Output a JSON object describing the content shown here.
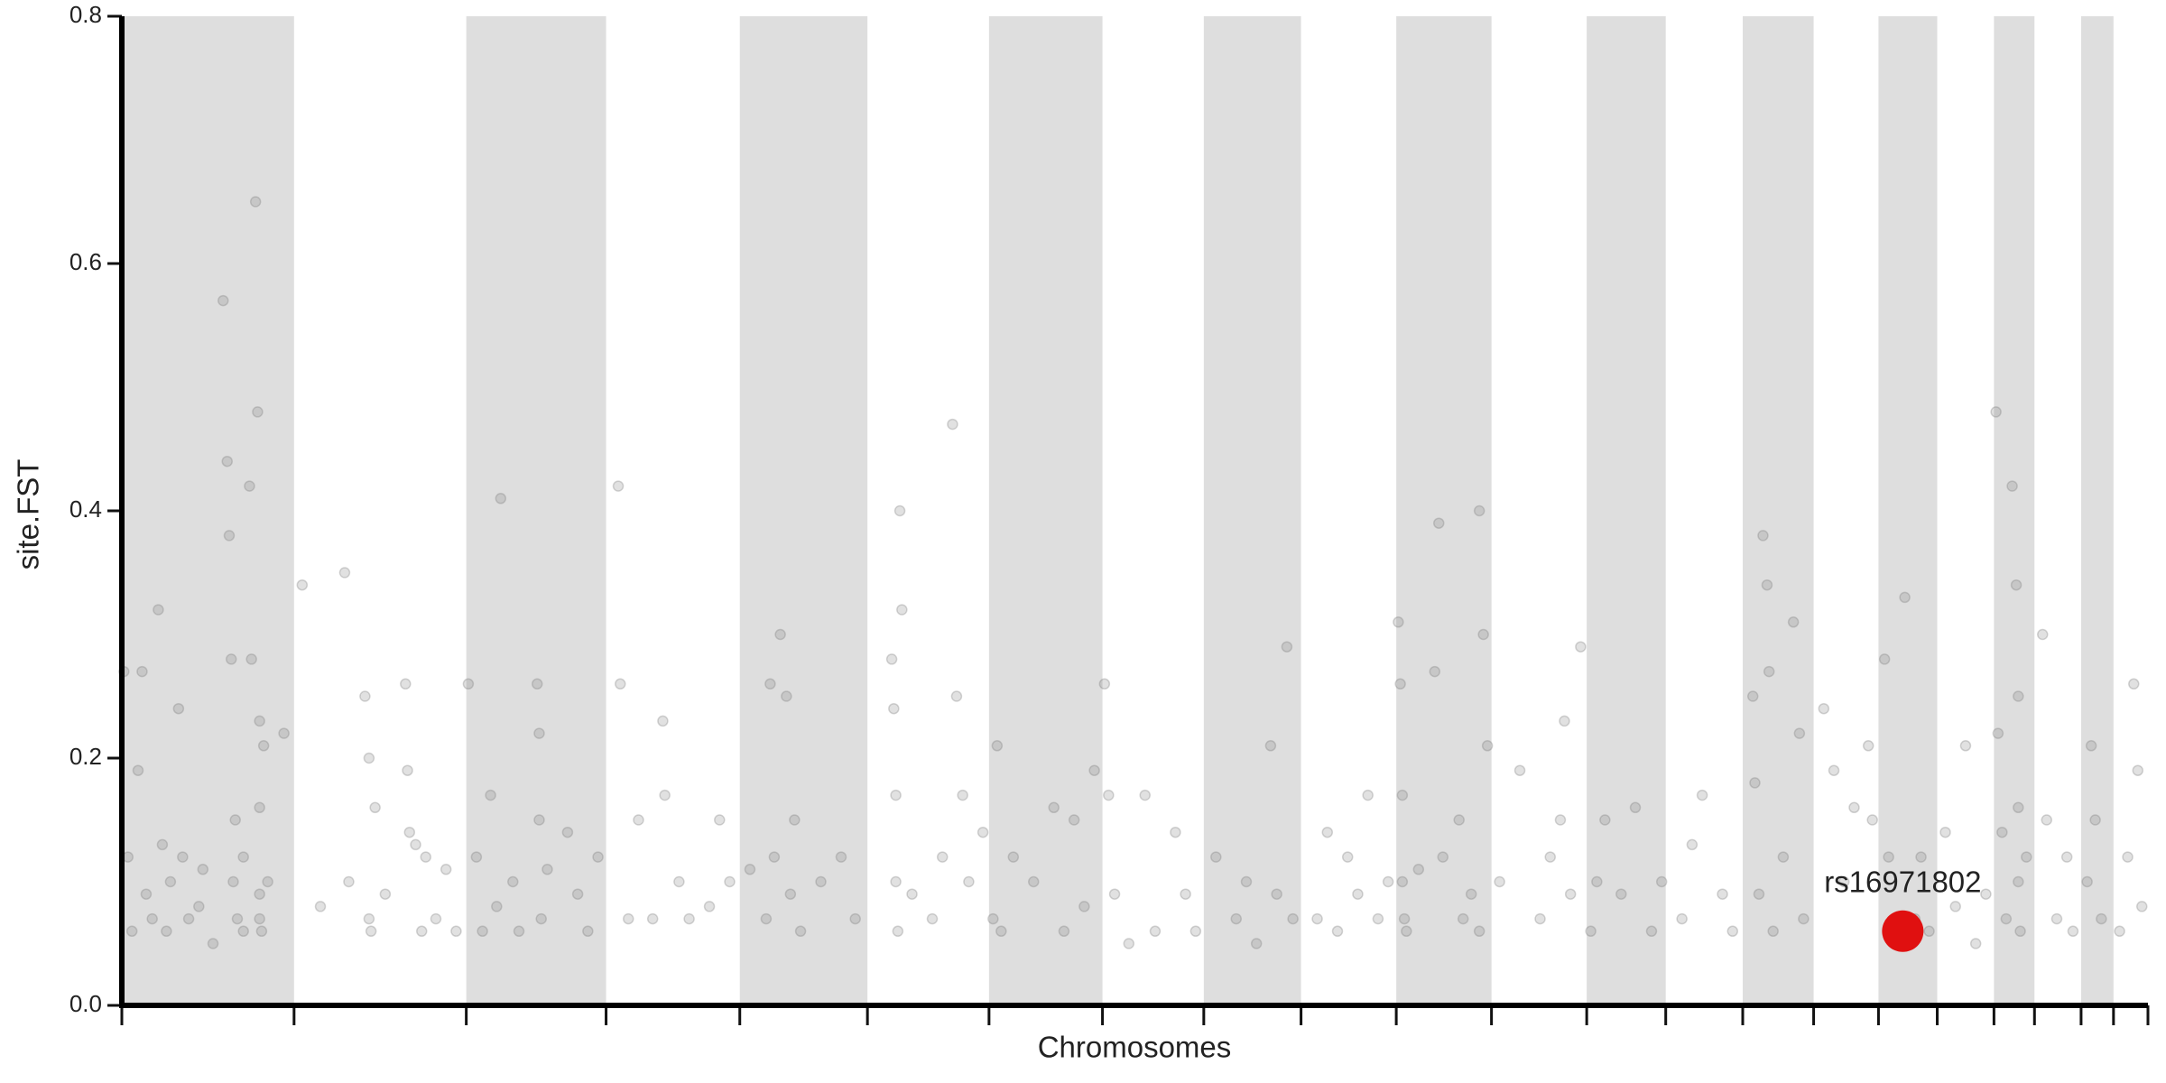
{
  "chart_data": {
    "type": "scatter",
    "x_label": "Chromosomes",
    "y_label": "site.FST",
    "xlim": [
      0,
      1000
    ],
    "xticks": [
      0,
      85,
      170,
      239,
      305,
      368,
      428,
      484,
      534,
      582,
      629,
      676,
      723,
      762,
      800,
      835,
      867,
      896,
      924,
      944,
      967,
      983,
      1000
    ],
    "ylim": [
      0,
      0.8
    ],
    "yticks": [
      {
        "value": 0,
        "label": "0.0"
      },
      0.2,
      0.4,
      0.6,
      0.8
    ],
    "color": "#777777",
    "band_color": "#dedede",
    "x": [
      1,
      3,
      5,
      8,
      10,
      12,
      15,
      18,
      20,
      22,
      24,
      28,
      30,
      33,
      38,
      40,
      50,
      52,
      53,
      54,
      55,
      56,
      57,
      60,
      63,
      64,
      66,
      67,
      68,
      68,
      68,
      68,
      69,
      70,
      72,
      80,
      45,
      60,
      89,
      98,
      110,
      112,
      120,
      122,
      122,
      123,
      125,
      130,
      140,
      141,
      142,
      145,
      148,
      150,
      155,
      160,
      165,
      171,
      175,
      178,
      182,
      185,
      187,
      193,
      196,
      205,
      206,
      206,
      207,
      210,
      220,
      225,
      230,
      235,
      245,
      246,
      250,
      255,
      262,
      267,
      268,
      275,
      280,
      290,
      295,
      300,
      310,
      318,
      320,
      322,
      325,
      328,
      330,
      332,
      335,
      345,
      355,
      362,
      380,
      381,
      382,
      382,
      383,
      384,
      385,
      390,
      400,
      405,
      410,
      412,
      415,
      418,
      425,
      430,
      432,
      434,
      440,
      450,
      460,
      465,
      470,
      475,
      480,
      485,
      487,
      490,
      497,
      505,
      510,
      520,
      525,
      530,
      540,
      550,
      555,
      560,
      567,
      570,
      575,
      578,
      590,
      595,
      600,
      605,
      610,
      615,
      620,
      625,
      630,
      631,
      632,
      632,
      633,
      634,
      640,
      648,
      650,
      652,
      660,
      662,
      666,
      670,
      672,
      674,
      670,
      680,
      690,
      700,
      705,
      710,
      712,
      715,
      720,
      725,
      728,
      732,
      740,
      747,
      755,
      760,
      770,
      775,
      780,
      790,
      795,
      805,
      806,
      808,
      810,
      812,
      813,
      815,
      820,
      825,
      828,
      830,
      840,
      845,
      850,
      855,
      862,
      864,
      870,
      872,
      880,
      885,
      888,
      892,
      900,
      905,
      910,
      915,
      920,
      925,
      926,
      928,
      930,
      933,
      935,
      936,
      936,
      936,
      937,
      940,
      948,
      950,
      955,
      960,
      963,
      970,
      972,
      974,
      977,
      986,
      990,
      993,
      995,
      997
    ],
    "values": [
      0.27,
      0.12,
      0.06,
      0.19,
      0.27,
      0.09,
      0.07,
      0.32,
      0.13,
      0.06,
      0.1,
      0.24,
      0.12,
      0.07,
      0.08,
      0.11,
      0.57,
      0.44,
      0.38,
      0.28,
      0.1,
      0.15,
      0.07,
      0.12,
      0.42,
      0.28,
      0.65,
      0.48,
      0.23,
      0.16,
      0.09,
      0.07,
      0.06,
      0.21,
      0.1,
      0.22,
      0.05,
      0.06,
      0.34,
      0.08,
      0.35,
      0.1,
      0.25,
      0.2,
      0.07,
      0.06,
      0.16,
      0.09,
      0.26,
      0.19,
      0.14,
      0.13,
      0.06,
      0.12,
      0.07,
      0.11,
      0.06,
      0.26,
      0.12,
      0.06,
      0.17,
      0.08,
      0.41,
      0.1,
      0.06,
      0.26,
      0.22,
      0.15,
      0.07,
      0.11,
      0.14,
      0.09,
      0.06,
      0.12,
      0.42,
      0.26,
      0.07,
      0.15,
      0.07,
      0.23,
      0.17,
      0.1,
      0.07,
      0.08,
      0.15,
      0.1,
      0.11,
      0.07,
      0.26,
      0.12,
      0.3,
      0.25,
      0.09,
      0.15,
      0.06,
      0.1,
      0.12,
      0.07,
      0.28,
      0.24,
      0.17,
      0.1,
      0.06,
      0.4,
      0.32,
      0.09,
      0.07,
      0.12,
      0.47,
      0.25,
      0.17,
      0.1,
      0.14,
      0.07,
      0.21,
      0.06,
      0.12,
      0.1,
      0.16,
      0.06,
      0.15,
      0.08,
      0.19,
      0.26,
      0.17,
      0.09,
      0.05,
      0.17,
      0.06,
      0.14,
      0.09,
      0.06,
      0.12,
      0.07,
      0.1,
      0.05,
      0.21,
      0.09,
      0.29,
      0.07,
      0.07,
      0.14,
      0.06,
      0.12,
      0.09,
      0.17,
      0.07,
      0.1,
      0.31,
      0.26,
      0.17,
      0.1,
      0.07,
      0.06,
      0.11,
      0.27,
      0.39,
      0.12,
      0.15,
      0.07,
      0.09,
      0.4,
      0.3,
      0.21,
      0.06,
      0.1,
      0.19,
      0.07,
      0.12,
      0.15,
      0.23,
      0.09,
      0.29,
      0.06,
      0.1,
      0.15,
      0.09,
      0.16,
      0.06,
      0.1,
      0.07,
      0.13,
      0.17,
      0.09,
      0.06,
      0.25,
      0.18,
      0.09,
      0.38,
      0.34,
      0.27,
      0.06,
      0.12,
      0.31,
      0.22,
      0.07,
      0.24,
      0.19,
      0.1,
      0.16,
      0.21,
      0.15,
      0.28,
      0.12,
      0.33,
      0.07,
      0.12,
      0.06,
      0.14,
      0.08,
      0.21,
      0.05,
      0.09,
      0.48,
      0.22,
      0.14,
      0.07,
      0.42,
      0.34,
      0.25,
      0.16,
      0.1,
      0.06,
      0.12,
      0.3,
      0.15,
      0.07,
      0.12,
      0.06,
      0.1,
      0.21,
      0.15,
      0.07,
      0.06,
      0.12,
      0.26,
      0.19,
      0.08
    ],
    "annotation": {
      "text": "rs16971802",
      "x": 879,
      "y": 0.06,
      "color": "#e01010"
    }
  }
}
